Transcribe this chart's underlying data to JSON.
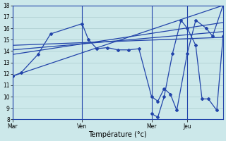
{
  "xlabel": "Température (°c)",
  "bg_color": "#cce8ea",
  "line_color": "#2244aa",
  "grid_color": "#aacccc",
  "ylim": [
    8,
    18
  ],
  "yticks": [
    8,
    9,
    10,
    11,
    12,
    13,
    14,
    15,
    16,
    17,
    18
  ],
  "xlim": [
    0,
    100
  ],
  "day_positions": [
    0,
    33,
    66,
    83
  ],
  "day_labels": [
    "Mar",
    "Ven",
    "Mer",
    "Jeu"
  ],
  "trend1_x": [
    0,
    100
  ],
  "trend1_y": [
    11.8,
    18.0
  ],
  "trend2_x": [
    0,
    100
  ],
  "trend2_y": [
    13.7,
    16.5
  ],
  "trend3_x": [
    0,
    100
  ],
  "trend3_y": [
    14.1,
    15.7
  ],
  "trend4_x": [
    0,
    100
  ],
  "trend4_y": [
    14.5,
    15.2
  ],
  "main_line_x": [
    0,
    4,
    12,
    18,
    33,
    36,
    40,
    45,
    50,
    55,
    60,
    66,
    69,
    72,
    75,
    78,
    83,
    87,
    92,
    95,
    100
  ],
  "main_line_y": [
    11.8,
    12.1,
    13.7,
    15.5,
    16.4,
    15.0,
    14.2,
    14.3,
    14.1,
    14.1,
    14.2,
    10.0,
    9.6,
    10.7,
    10.2,
    8.8,
    13.8,
    16.7,
    16.0,
    15.3,
    18.0
  ],
  "second_line_x": [
    66,
    69,
    72,
    76,
    80,
    83,
    87,
    90,
    93,
    97,
    100
  ],
  "second_line_y": [
    8.5,
    8.2,
    10.0,
    13.8,
    16.7,
    16.0,
    14.5,
    9.8,
    9.8,
    8.8,
    15.3
  ]
}
